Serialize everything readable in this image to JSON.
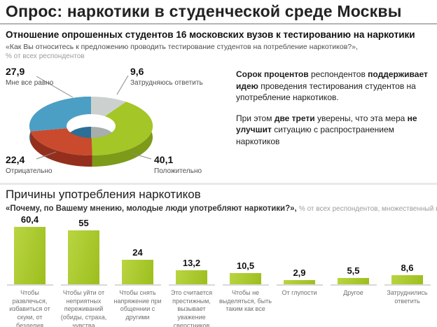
{
  "page": {
    "title": "Опрос: наркотики в студенческой среде Москвы"
  },
  "section1": {
    "heading": "Отношение опрошенных студентов 16 московских вузов к тестированию на наркотики",
    "question": "«Как Вы относитесь к предложению проводить тестирование студентов на потребление наркотиков?»,",
    "note": "% от всех респондентов",
    "commentary": {
      "p1_b1": "Сорок процентов",
      "p1_t1": " респондентов ",
      "p1_b2": "поддерживает идею",
      "p1_t2": " проведения тестирования студентов на употребление наркотиков.",
      "p2_t1": "При этом ",
      "p2_b1": "две трети",
      "p2_t2": " уверены, что эта мера ",
      "p2_b2": "не улучшит",
      "p2_t3": " ситуацию с распространением наркотиков"
    }
  },
  "section2": {
    "heading": "Причины употребления наркотиков",
    "question": "«Почему, по Вашему мнению, молодые люди употребляют наркотики?»,",
    "note": " % от всех респондентов, множественный выбор"
  },
  "chart_data": [
    {
      "type": "pie",
      "subtype": "3d-donut",
      "title": "Отношение опрошенных студентов 16 московских вузов к тестированию на наркотики",
      "units": "% от всех респондентов",
      "slices": [
        {
          "label": "Положительно",
          "value": 40.1,
          "display": "40,1",
          "color": "#a4c626"
        },
        {
          "label": "Мне все равно",
          "value": 27.9,
          "display": "27,9",
          "color": "#4c9fc4"
        },
        {
          "label": "Отрицательно",
          "value": 22.4,
          "display": "22,4",
          "color": "#ca4a2e"
        },
        {
          "label": "Затрудняюсь ответить",
          "value": 9.6,
          "display": "9,6",
          "color": "#ccd1cf"
        }
      ],
      "legend_position": "callouts"
    },
    {
      "type": "bar",
      "title": "Причины употребления наркотиков",
      "units": "% от всех респондентов, множественный выбор",
      "categories": [
        "Чтобы развлечься, избавиться от скуки, от безделия",
        "Чтобы уйти от неприятных переживаний (обиды, страха, чувства одиночества)",
        "Чтобы снять напряжение при общеннии с другими",
        "Это считается престижным, вызывает уважение сверстников",
        "Чтобы не выделяться, быть таким как все",
        "От глупости",
        "Другое",
        "Затруднились ответить"
      ],
      "values": [
        60.4,
        55,
        24,
        13.2,
        10.5,
        2.9,
        5.5,
        8.6
      ],
      "display_values": [
        "60,4",
        "55",
        "24",
        "13,2",
        "10,5",
        "2,9",
        "5,5",
        "8,6"
      ],
      "bar_color": "#9dbe1e",
      "bar_color_light": "#b9d542",
      "ylim": [
        0,
        70
      ],
      "grid": false
    }
  ]
}
